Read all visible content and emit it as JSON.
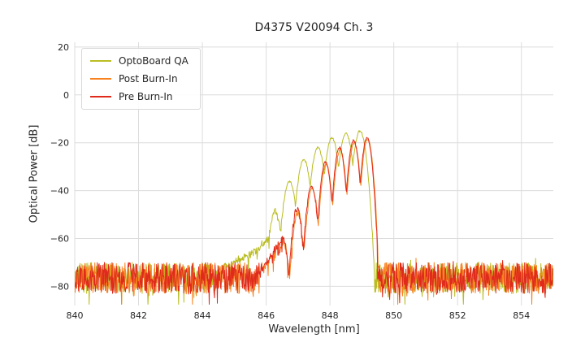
{
  "chart_data": {
    "type": "line",
    "title": "D4375 V20094 Ch. 3",
    "xlabel": "Wavelength [nm]",
    "ylabel": "Optical Power [dB]",
    "xlim": [
      840,
      855
    ],
    "ylim": [
      -88,
      22
    ],
    "xticks": [
      840,
      842,
      844,
      846,
      848,
      850,
      852,
      854
    ],
    "yticks": [
      20,
      0,
      -20,
      -40,
      -60,
      -80
    ],
    "grid": true,
    "grid_color": "#dcdcdc",
    "text_color": "#262626",
    "legend_position": "upper left",
    "description": "Optical spectrum: broadband noise floor near -76 dB across 840-855 nm with a multimode laser signal between ~846 and ~849.5 nm peaking near -15 dB, sharp cutoff at ~849.5 nm.",
    "series": [
      {
        "name": "OptoBoard QA",
        "color": "#b9bd22",
        "seed": 7,
        "noise": {
          "mean_db": -76.5,
          "spread_db": 13
        },
        "pedestal": [
          [
            844.45,
            -75
          ],
          [
            845.1,
            -69
          ],
          [
            845.6,
            -66
          ],
          [
            846.05,
            -60
          ],
          [
            846.28,
            -52
          ]
        ],
        "mode_sigma_nm": 0.042,
        "modes": [
          [
            846.28,
            -49
          ],
          [
            846.73,
            -36
          ],
          [
            847.18,
            -27
          ],
          [
            847.62,
            -22
          ],
          [
            848.06,
            -18
          ],
          [
            848.5,
            -16
          ],
          [
            848.94,
            -15
          ]
        ],
        "cutoff_nm": 849.38,
        "noise_floor_range_db": [
          -88,
          -68
        ],
        "peak_db": -15,
        "peak_nm": 848.94
      },
      {
        "name": "Post Burn-In",
        "color": "#f8821e",
        "seed": 13,
        "noise": {
          "mean_db": -76.5,
          "spread_db": 13
        },
        "pedestal": [
          [
            845.78,
            -75
          ],
          [
            846.12,
            -68.5
          ],
          [
            846.42,
            -62.5
          ]
        ],
        "mode_sigma_nm": 0.034,
        "modes": [
          [
            846.54,
            -61
          ],
          [
            846.99,
            -49
          ],
          [
            847.44,
            -39
          ],
          [
            847.88,
            -29
          ],
          [
            848.32,
            -23
          ],
          [
            848.76,
            -20
          ],
          [
            849.18,
            -18.5
          ]
        ],
        "cutoff_nm": 849.5,
        "noise_floor_range_db": [
          -88,
          -68
        ],
        "peak_db": -18.5,
        "peak_nm": 849.18
      },
      {
        "name": "Pre Burn-In",
        "color": "#df2a1c",
        "seed": 29,
        "noise": {
          "mean_db": -76.5,
          "spread_db": 13
        },
        "pedestal": [
          [
            845.75,
            -75
          ],
          [
            846.1,
            -68
          ],
          [
            846.4,
            -62
          ]
        ],
        "mode_sigma_nm": 0.034,
        "modes": [
          [
            846.52,
            -60
          ],
          [
            846.97,
            -48
          ],
          [
            847.42,
            -38
          ],
          [
            847.86,
            -28
          ],
          [
            848.3,
            -22
          ],
          [
            848.74,
            -19
          ],
          [
            849.16,
            -18
          ]
        ],
        "cutoff_nm": 849.48,
        "noise_floor_range_db": [
          -88,
          -68
        ],
        "peak_db": -18,
        "peak_nm": 849.16
      }
    ]
  }
}
